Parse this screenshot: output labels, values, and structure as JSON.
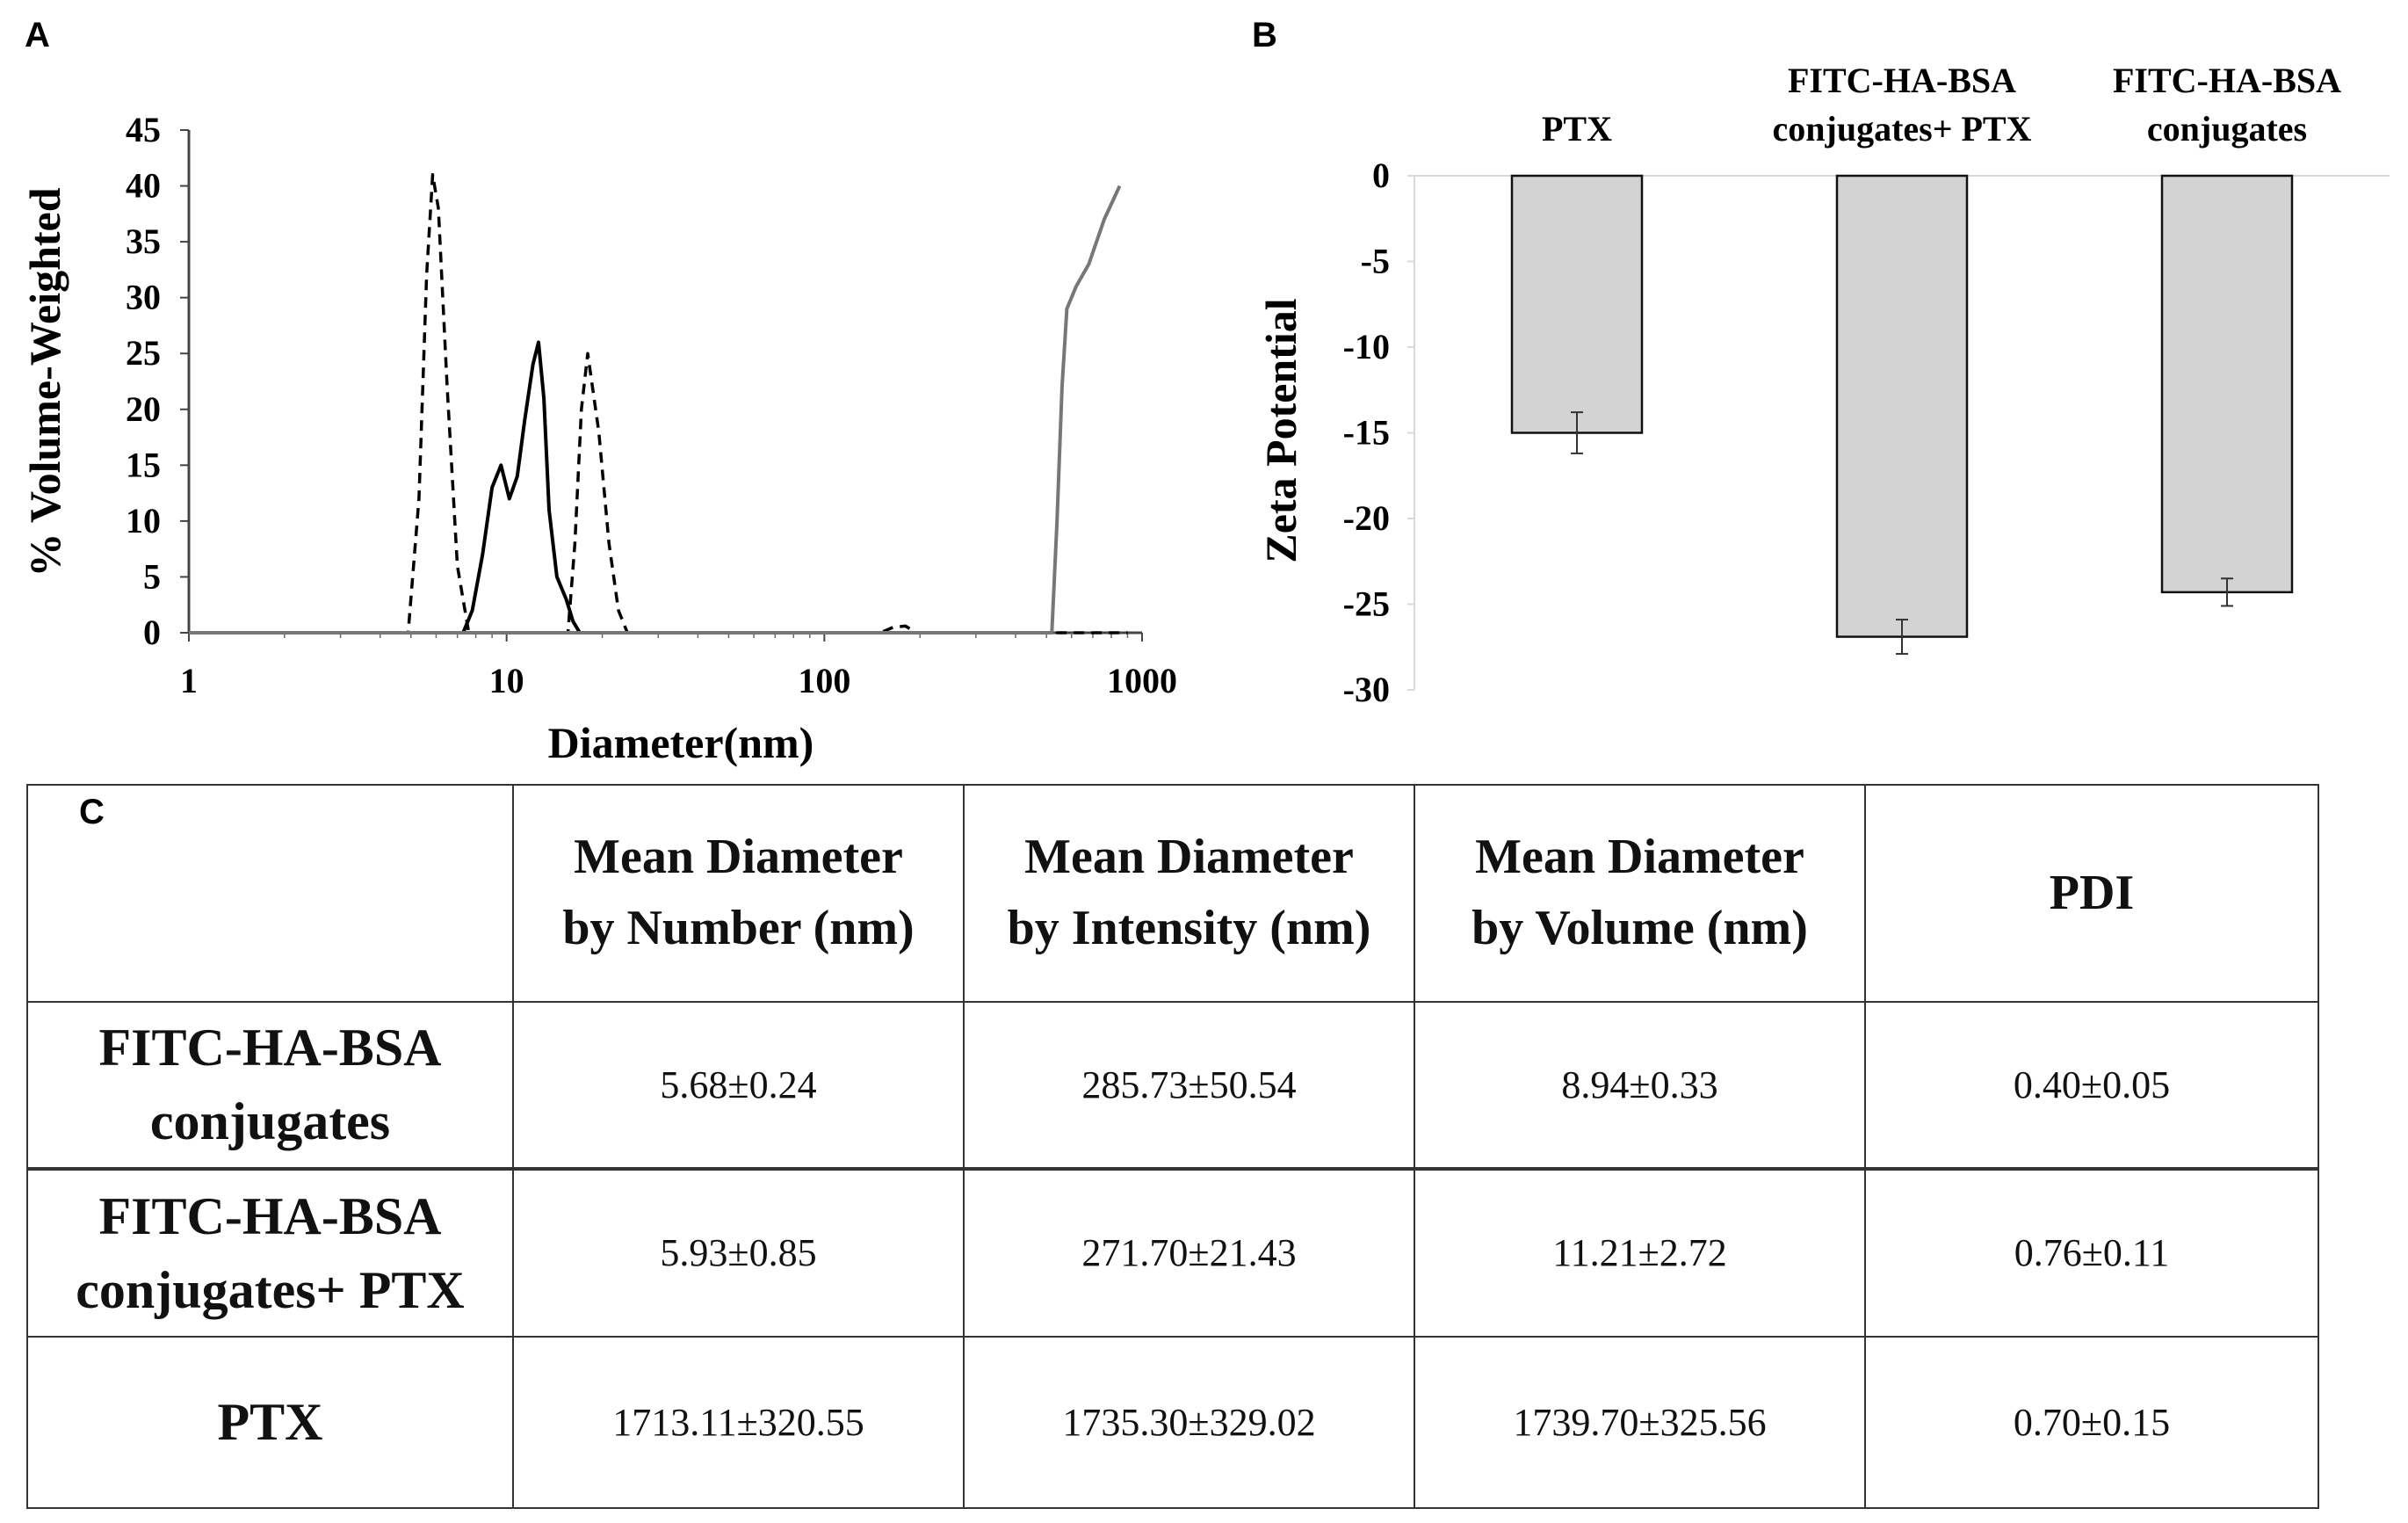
{
  "panels": {
    "a": "A",
    "b": "B",
    "c": "C"
  },
  "chart_data": [
    {
      "type": "line",
      "panel": "A",
      "xlabel": "Diameter(nm)",
      "ylabel": "% Volume-Weighted",
      "xscale": "log",
      "xlim": [
        1,
        1000
      ],
      "ylim": [
        0,
        45
      ],
      "x_ticks": [
        "1",
        "10",
        "100",
        "1000"
      ],
      "y_ticks": [
        "0",
        "5",
        "10",
        "15",
        "20",
        "25",
        "30",
        "35",
        "40",
        "45"
      ],
      "series": [
        {
          "name": "FITC-HA-BSA conjugates",
          "style": "dashed",
          "color": "#000000",
          "x": [
            1,
            4.9,
            5.3,
            5.6,
            5.85,
            6.1,
            6.5,
            7.0,
            7.6,
            8.5,
            15.6,
            16.4,
            17.2,
            18.0,
            19.5,
            21.0,
            22.5,
            24.0,
            150,
            165,
            180,
            195,
            500,
            900
          ],
          "y": [
            0,
            0,
            12,
            32,
            41,
            38,
            22,
            6,
            0,
            0,
            0,
            8,
            20,
            25,
            18,
            8,
            2,
            0,
            0,
            0.5,
            0.6,
            0,
            0,
            0
          ]
        },
        {
          "name": "FITC-HA-BSA conjugates+ PTX",
          "style": "solid",
          "color": "#000000",
          "x": [
            1,
            7.3,
            7.8,
            8.4,
            9.0,
            9.6,
            10.2,
            10.8,
            11.4,
            12.1,
            12.6,
            13.1,
            13.6,
            14.4,
            15.4,
            16.2,
            17.0,
            18.0,
            45
          ],
          "y": [
            0,
            0,
            2,
            7,
            13,
            15,
            12,
            14,
            19,
            24,
            26,
            21,
            11,
            5,
            3,
            1,
            0,
            0,
            0
          ]
        },
        {
          "name": "PTX",
          "style": "solid",
          "color": "#777777",
          "x": [
            1,
            520,
            540,
            560,
            580,
            620,
            680,
            760,
            850
          ],
          "y": [
            0,
            0,
            10,
            22,
            29,
            31,
            33,
            37,
            40
          ]
        }
      ]
    },
    {
      "type": "bar",
      "panel": "B",
      "ylabel": "Zeta Potential",
      "ylim": [
        -30,
        0
      ],
      "y_ticks": [
        "0",
        "-5",
        "-10",
        "-15",
        "-20",
        "-25",
        "-30"
      ],
      "categories": [
        {
          "line1": "PTX",
          "line2": ""
        },
        {
          "line1": "FITC-HA-BSA",
          "line2": "conjugates+ PTX"
        },
        {
          "line1": "FITC-HA-BSA",
          "line2": "conjugates"
        }
      ],
      "values": [
        -15.0,
        -26.9,
        -24.3
      ],
      "errors": [
        1.2,
        1.0,
        0.8
      ],
      "bar_color": "#d3d3d3",
      "edge_color": "#111111"
    }
  ],
  "table": {
    "headers": [
      {
        "line1": "Mean Diameter",
        "line2": "by Number (nm)"
      },
      {
        "line1": "Mean Diameter",
        "line2": "by Intensity (nm)"
      },
      {
        "line1": "Mean Diameter",
        "line2": "by Volume (nm)"
      },
      {
        "line1": "PDI",
        "line2": ""
      }
    ],
    "rows": [
      {
        "label_line1": "FITC-HA-BSA",
        "label_line2": "conjugates",
        "cells": [
          "5.68±0.24",
          "285.73±50.54",
          "8.94±0.33",
          "0.40±0.05"
        ]
      },
      {
        "label_line1": "FITC-HA-BSA",
        "label_line2": "conjugates+ PTX",
        "cells": [
          "5.93±0.85",
          "271.70±21.43",
          "11.21±2.72",
          "0.76±0.11"
        ]
      },
      {
        "label_line1": "PTX",
        "label_line2": "",
        "cells": [
          "1713.11±320.55",
          "1735.30±329.02",
          "1739.70±325.56",
          "0.70±0.15"
        ]
      }
    ]
  }
}
